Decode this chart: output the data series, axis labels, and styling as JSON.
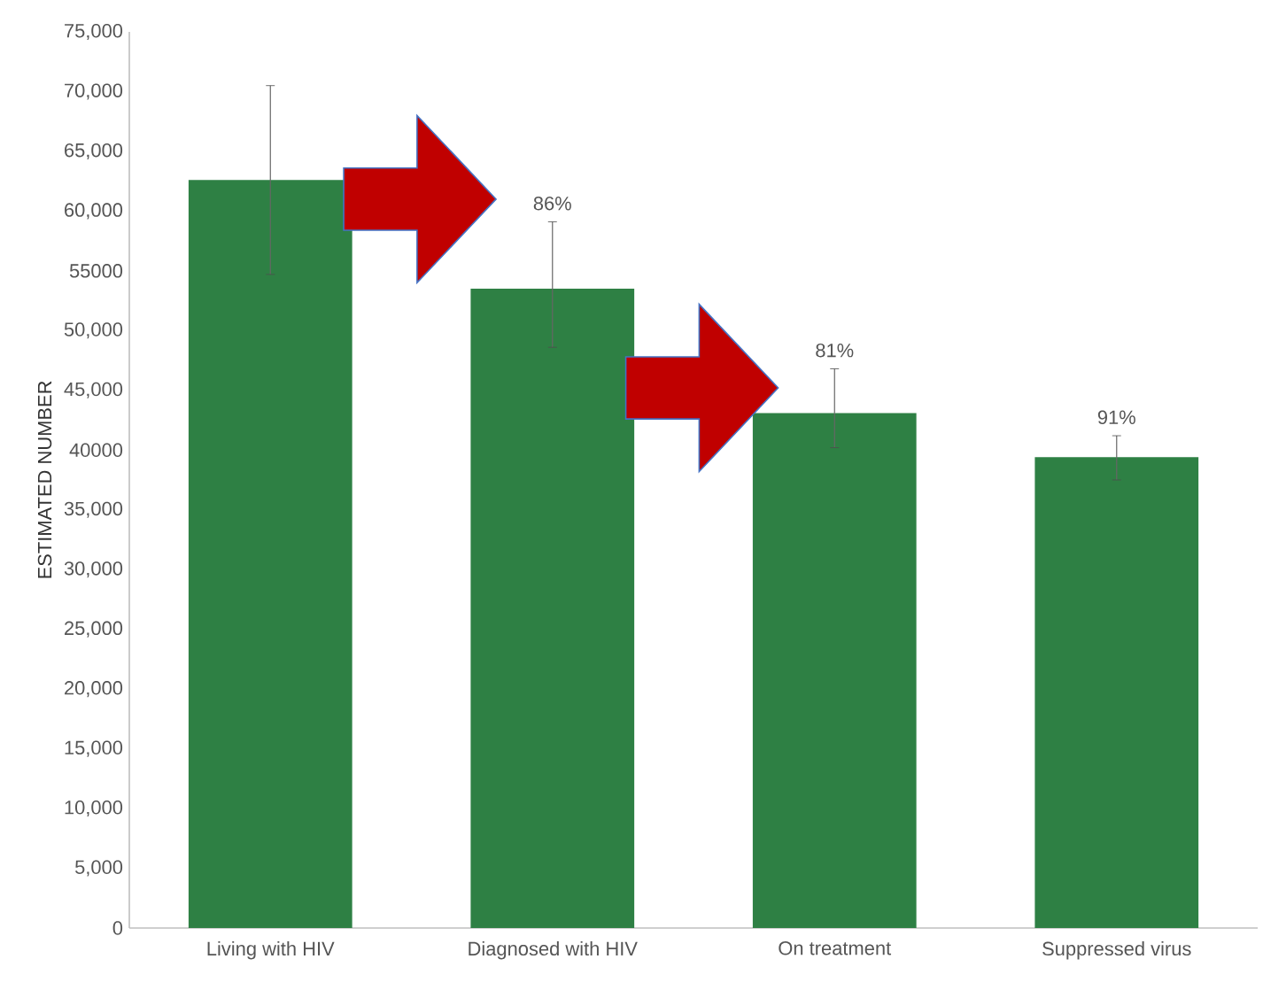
{
  "chart_data": {
    "type": "bar",
    "ylabel": "ESTIMATED NUMBER",
    "categories": [
      "Living with HIV",
      "Diagnosed with HIV",
      "On treatment",
      "Suppressed virus"
    ],
    "values": [
      62600,
      53500,
      43100,
      39400
    ],
    "color": "#2e8044",
    "errors": [
      [
        54700,
        70500
      ],
      [
        48600,
        59100
      ],
      [
        40200,
        46800
      ],
      [
        37500,
        41200
      ]
    ],
    "ylim": [
      0,
      75000
    ],
    "yticks": [
      0,
      {
        "value": 5000,
        "label": "5,000"
      },
      {
        "value": 10000,
        "label": "10,000"
      },
      {
        "value": 15000,
        "label": "15,000"
      },
      {
        "value": 20000,
        "label": "20,000"
      },
      {
        "value": 25000,
        "label": "25,000"
      },
      {
        "value": 30000,
        "label": "30,000"
      },
      {
        "value": 35000,
        "label": "35,000"
      },
      40000,
      {
        "value": 45000,
        "label": "45,000"
      },
      {
        "value": 50000,
        "label": "50,000"
      },
      55000,
      {
        "value": 60000,
        "label": "60,000"
      },
      {
        "value": 65000,
        "label": "65,000"
      },
      {
        "value": 70000,
        "label": "70,000"
      },
      {
        "value": 75000,
        "label": "75,000"
      }
    ],
    "annotations": [
      {
        "text": "86%",
        "x": "Diagnosed with HIV",
        "y": 59100
      },
      {
        "text": "81%",
        "x": "On treatment",
        "y": 46800
      },
      {
        "text": "91%",
        "x": "Suppressed virus",
        "y": 41200
      }
    ],
    "grid": false
  }
}
